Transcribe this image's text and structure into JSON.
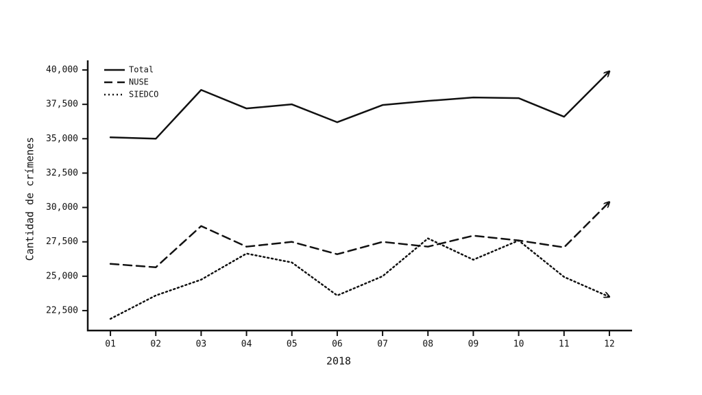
{
  "chart_data": {
    "type": "line",
    "xlabel": "2018",
    "ylabel": "Cantidad de crímenes",
    "categories": [
      "01",
      "02",
      "03",
      "04",
      "05",
      "06",
      "07",
      "08",
      "09",
      "10",
      "11",
      "12"
    ],
    "series": [
      {
        "name": "Total",
        "color": "#111111",
        "style": "solid",
        "values": [
          35100,
          35000,
          38550,
          37200,
          37500,
          36200,
          37450,
          37750,
          38000,
          37950,
          36600,
          39900
        ]
      },
      {
        "name": "NUSE",
        "color": "#111111",
        "style": "dashed",
        "values": [
          25900,
          25650,
          28650,
          27150,
          27500,
          26600,
          27500,
          27150,
          27950,
          27600,
          27100,
          30400
        ]
      },
      {
        "name": "SIEDCO",
        "color": "#111111",
        "style": "dotted",
        "values": [
          21900,
          23600,
          24750,
          26650,
          26000,
          23600,
          25000,
          27750,
          26200,
          27600,
          24950,
          23500
        ]
      }
    ],
    "ylim": [
      21050,
      40700
    ],
    "yticks": [
      {
        "value": 22500,
        "label": "22,500"
      },
      {
        "value": 25000,
        "label": "25,000"
      },
      {
        "value": 27500,
        "label": "27,500"
      },
      {
        "value": 30000,
        "label": "30,000"
      },
      {
        "value": 32500,
        "label": "32,500"
      },
      {
        "value": 35000,
        "label": "35,000"
      },
      {
        "value": 37500,
        "label": "37,500"
      },
      {
        "value": 40000,
        "label": "40,000"
      }
    ],
    "grid": false,
    "legend": "upper-left",
    "arrow_ends": true
  }
}
